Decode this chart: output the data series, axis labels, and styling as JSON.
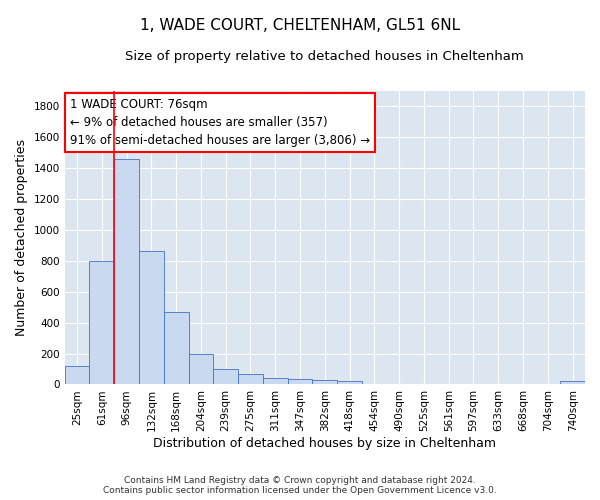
{
  "title1": "1, WADE COURT, CHELTENHAM, GL51 6NL",
  "title2": "Size of property relative to detached houses in Cheltenham",
  "xlabel": "Distribution of detached houses by size in Cheltenham",
  "ylabel": "Number of detached properties",
  "footer1": "Contains HM Land Registry data © Crown copyright and database right 2024.",
  "footer2": "Contains public sector information licensed under the Open Government Licence v3.0.",
  "bar_labels": [
    "25sqm",
    "61sqm",
    "96sqm",
    "132sqm",
    "168sqm",
    "204sqm",
    "239sqm",
    "275sqm",
    "311sqm",
    "347sqm",
    "382sqm",
    "418sqm",
    "454sqm",
    "490sqm",
    "525sqm",
    "561sqm",
    "597sqm",
    "633sqm",
    "668sqm",
    "704sqm",
    "740sqm"
  ],
  "bar_values": [
    120,
    795,
    1460,
    865,
    470,
    200,
    100,
    65,
    40,
    35,
    30,
    20,
    0,
    0,
    0,
    0,
    0,
    0,
    0,
    0,
    20
  ],
  "bar_color": "#c9daf0",
  "bar_edge_color": "#4472c4",
  "ylim": [
    0,
    1900
  ],
  "yticks": [
    0,
    200,
    400,
    600,
    800,
    1000,
    1200,
    1400,
    1600,
    1800
  ],
  "annotation_line1": "1 WADE COURT: 76sqm",
  "annotation_line2": "← 9% of detached houses are smaller (357)",
  "annotation_line3": "91% of semi-detached houses are larger (3,806) →",
  "red_line_bar_index": 1,
  "bg_color": "#ffffff",
  "plot_bg_color": "#dce6f1",
  "grid_color": "#ffffff",
  "title_fontsize": 11,
  "subtitle_fontsize": 9.5,
  "annotation_fontsize": 8.5,
  "tick_fontsize": 7.5,
  "ylabel_fontsize": 9,
  "xlabel_fontsize": 9,
  "footer_fontsize": 6.5
}
